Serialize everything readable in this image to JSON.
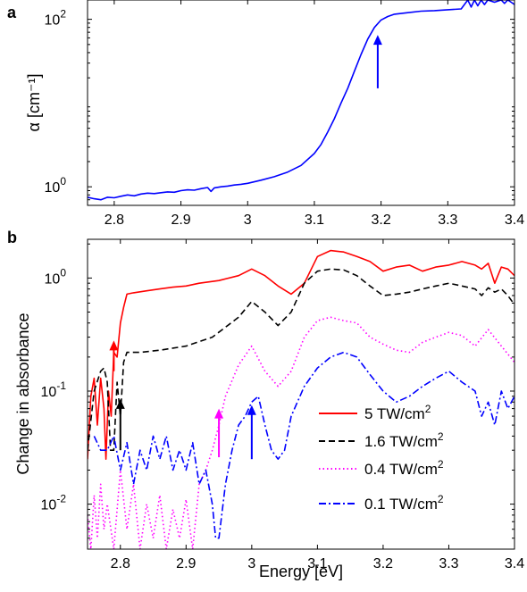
{
  "chart_data": [
    {
      "panel_label": "a",
      "type": "line",
      "ylabel": "α [cm⁻¹]",
      "xlabel": "",
      "xlim": [
        2.76,
        3.4
      ],
      "ylim": [
        0.6,
        170
      ],
      "yscale": "log",
      "grid": false,
      "xticks": [
        2.8,
        2.9,
        3.0,
        3.1,
        3.2,
        3.3,
        3.4
      ],
      "xtick_labels": [
        "2.8",
        "2.9",
        "3",
        "3.1",
        "3.2",
        "3.3",
        "3.4"
      ],
      "yticks": [
        1,
        100
      ],
      "ytick_labels": [
        "10⁰",
        "10²"
      ],
      "series": [
        {
          "color": "#0000ff",
          "style": "solid",
          "x": [
            2.76,
            2.77,
            2.78,
            2.79,
            2.8,
            2.81,
            2.82,
            2.83,
            2.84,
            2.85,
            2.86,
            2.87,
            2.88,
            2.89,
            2.9,
            2.91,
            2.92,
            2.93,
            2.94,
            2.945,
            2.95,
            2.96,
            2.97,
            2.98,
            2.99,
            3.0,
            3.02,
            3.04,
            3.06,
            3.08,
            3.1,
            3.11,
            3.12,
            3.13,
            3.14,
            3.15,
            3.16,
            3.17,
            3.18,
            3.19,
            3.2,
            3.21,
            3.22,
            3.24,
            3.26,
            3.28,
            3.3,
            3.32,
            3.33,
            3.335,
            3.34,
            3.345,
            3.35,
            3.355,
            3.36,
            3.37,
            3.38,
            3.385,
            3.39,
            3.395,
            3.4
          ],
          "y": [
            0.75,
            0.72,
            0.7,
            0.75,
            0.74,
            0.77,
            0.8,
            0.78,
            0.82,
            0.84,
            0.83,
            0.85,
            0.87,
            0.86,
            0.9,
            0.92,
            0.91,
            0.95,
            0.98,
            0.88,
            0.97,
            1.0,
            1.02,
            1.05,
            1.07,
            1.1,
            1.2,
            1.32,
            1.5,
            1.8,
            2.5,
            3.2,
            4.5,
            6.5,
            10,
            15,
            24,
            38,
            58,
            80,
            98,
            108,
            115,
            120,
            125,
            127,
            130,
            133,
            170,
            140,
            170,
            145,
            170,
            150,
            170,
            160,
            170,
            155,
            170,
            160,
            150
          ]
        }
      ],
      "annotations": [
        {
          "type": "arrow",
          "x": 3.195,
          "y_from": 15,
          "y_to": 65,
          "color": "#0000ff"
        }
      ]
    },
    {
      "panel_label": "b",
      "type": "line",
      "xlabel": "Energy [eV]",
      "ylabel": "Change in absorbance",
      "xlim": [
        2.75,
        3.4
      ],
      "ylim": [
        0.004,
        2.2
      ],
      "yscale": "log",
      "grid": false,
      "legend_position": "bottom-right",
      "xticks": [
        2.8,
        2.9,
        3.0,
        3.1,
        3.2,
        3.3,
        3.4
      ],
      "xtick_labels": [
        "2.8",
        "2.9",
        "3",
        "3.1",
        "3.2",
        "3.3",
        "3.4"
      ],
      "yticks": [
        0.01,
        0.1,
        1
      ],
      "ytick_labels": [
        "10⁻²",
        "10⁻¹",
        "10⁰"
      ],
      "series": [
        {
          "name": "5 TW/cm²",
          "legend_main": "5 TW/cm",
          "legend_sup": "2",
          "color": "#ff0000",
          "style": "solid",
          "x": [
            2.75,
            2.755,
            2.76,
            2.765,
            2.77,
            2.775,
            2.778,
            2.782,
            2.786,
            2.79,
            2.795,
            2.8,
            2.805,
            2.81,
            2.82,
            2.84,
            2.86,
            2.88,
            2.9,
            2.92,
            2.95,
            2.98,
            3.0,
            3.02,
            3.04,
            3.06,
            3.08,
            3.1,
            3.12,
            3.14,
            3.16,
            3.18,
            3.2,
            3.22,
            3.24,
            3.26,
            3.28,
            3.3,
            3.32,
            3.34,
            3.35,
            3.36,
            3.37,
            3.38,
            3.39,
            3.4
          ],
          "y": [
            0.025,
            0.09,
            0.13,
            0.05,
            0.13,
            0.07,
            0.025,
            0.1,
            0.06,
            0.22,
            0.2,
            0.4,
            0.55,
            0.72,
            0.74,
            0.77,
            0.8,
            0.83,
            0.85,
            0.9,
            0.95,
            1.05,
            1.2,
            1.05,
            0.85,
            0.72,
            0.9,
            1.55,
            1.75,
            1.7,
            1.55,
            1.4,
            1.15,
            1.25,
            1.3,
            1.15,
            1.25,
            1.3,
            1.4,
            1.3,
            1.2,
            1.35,
            0.9,
            1.25,
            1.2,
            1.05
          ]
        },
        {
          "name": "1.6 TW/cm²",
          "legend_main": "1.6 TW/cm",
          "legend_sup": "2",
          "color": "#000000",
          "style": "dashed",
          "x": [
            2.75,
            2.76,
            2.77,
            2.775,
            2.78,
            2.785,
            2.79,
            2.795,
            2.8,
            2.805,
            2.81,
            2.83,
            2.86,
            2.9,
            2.94,
            2.98,
            3.0,
            3.02,
            3.04,
            3.06,
            3.08,
            3.1,
            3.12,
            3.14,
            3.16,
            3.18,
            3.2,
            3.22,
            3.24,
            3.26,
            3.28,
            3.3,
            3.32,
            3.34,
            3.35,
            3.36,
            3.37,
            3.38,
            3.39,
            3.4
          ],
          "y": [
            0.03,
            0.1,
            0.15,
            0.16,
            0.12,
            0.03,
            0.03,
            0.12,
            0.06,
            0.18,
            0.22,
            0.22,
            0.23,
            0.25,
            0.3,
            0.45,
            0.62,
            0.5,
            0.38,
            0.5,
            0.9,
            1.15,
            1.2,
            1.18,
            1.05,
            0.85,
            0.7,
            0.72,
            0.75,
            0.8,
            0.85,
            0.9,
            0.85,
            0.8,
            0.7,
            0.82,
            0.75,
            0.8,
            0.7,
            0.58
          ]
        },
        {
          "name": "0.4 TW/cm²",
          "legend_main": "0.4 TW/cm",
          "legend_sup": "2",
          "color": "#ff00ff",
          "style": "dotted",
          "x": [
            2.75,
            2.755,
            2.76,
            2.765,
            2.77,
            2.775,
            2.78,
            2.79,
            2.8,
            2.81,
            2.82,
            2.83,
            2.84,
            2.85,
            2.86,
            2.87,
            2.88,
            2.89,
            2.9,
            2.91,
            2.92,
            2.93,
            2.94,
            2.95,
            2.96,
            2.98,
            3.0,
            3.02,
            3.04,
            3.06,
            3.08,
            3.1,
            3.12,
            3.14,
            3.16,
            3.18,
            3.2,
            3.22,
            3.24,
            3.26,
            3.28,
            3.3,
            3.32,
            3.34,
            3.36,
            3.38,
            3.4
          ],
          "y": [
            0.008,
            0.004,
            0.012,
            0.005,
            0.015,
            0.006,
            0.01,
            0.004,
            0.02,
            0.006,
            0.015,
            0.004,
            0.01,
            0.005,
            0.012,
            0.004,
            0.009,
            0.005,
            0.011,
            0.004,
            0.015,
            0.02,
            0.03,
            0.05,
            0.09,
            0.17,
            0.25,
            0.15,
            0.11,
            0.15,
            0.3,
            0.42,
            0.45,
            0.42,
            0.4,
            0.3,
            0.26,
            0.23,
            0.22,
            0.27,
            0.3,
            0.33,
            0.31,
            0.25,
            0.35,
            0.25,
            0.18
          ]
        },
        {
          "name": "0.1 TW/cm²",
          "legend_main": "0.1 TW/cm",
          "legend_sup": "2",
          "color": "#0000ff",
          "style": "dashdot",
          "x": [
            2.76,
            2.77,
            2.78,
            2.79,
            2.8,
            2.81,
            2.82,
            2.83,
            2.84,
            2.85,
            2.86,
            2.87,
            2.88,
            2.89,
            2.9,
            2.91,
            2.92,
            2.93,
            2.94,
            2.945,
            2.95,
            2.96,
            2.97,
            2.98,
            2.99,
            3.0,
            3.01,
            3.02,
            3.03,
            3.04,
            3.05,
            3.06,
            3.08,
            3.1,
            3.12,
            3.14,
            3.16,
            3.18,
            3.2,
            3.22,
            3.24,
            3.26,
            3.28,
            3.3,
            3.32,
            3.34,
            3.35,
            3.36,
            3.37,
            3.38,
            3.39,
            3.4
          ],
          "y": [
            0.04,
            0.03,
            0.03,
            0.04,
            0.02,
            0.035,
            0.015,
            0.03,
            0.02,
            0.04,
            0.025,
            0.04,
            0.02,
            0.03,
            0.02,
            0.035,
            0.015,
            0.02,
            0.01,
            0.005,
            0.005,
            0.015,
            0.03,
            0.05,
            0.06,
            0.08,
            0.09,
            0.05,
            0.03,
            0.025,
            0.03,
            0.06,
            0.11,
            0.16,
            0.2,
            0.22,
            0.2,
            0.14,
            0.1,
            0.08,
            0.09,
            0.11,
            0.13,
            0.15,
            0.12,
            0.1,
            0.06,
            0.08,
            0.05,
            0.1,
            0.07,
            0.09
          ]
        }
      ],
      "annotations": [
        {
          "type": "arrow",
          "x": 2.79,
          "y_from": 0.15,
          "y_to": 0.28,
          "color": "#ff0000"
        },
        {
          "type": "arrow",
          "x": 2.8,
          "y_from": 0.03,
          "y_to": 0.085,
          "color": "#000000"
        },
        {
          "type": "arrow",
          "x": 2.95,
          "y_from": 0.026,
          "y_to": 0.07,
          "color": "#ff00ff"
        },
        {
          "type": "arrow",
          "x": 3.0,
          "y_from": 0.025,
          "y_to": 0.075,
          "color": "#0000ff"
        }
      ]
    }
  ]
}
